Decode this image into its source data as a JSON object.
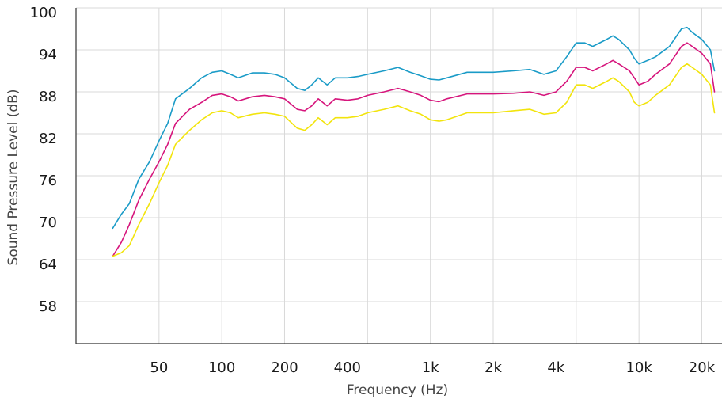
{
  "chart_data": {
    "type": "line",
    "xlabel": "Frequency (Hz)",
    "ylabel": "Sound Pressure Level (dB)",
    "x_scale": "log",
    "xlim": [
      20,
      25000
    ],
    "ylim": [
      52,
      100
    ],
    "grid": true,
    "x_gridlines": [
      50,
      100,
      200,
      500,
      1000,
      2000,
      5000,
      10000,
      20000
    ],
    "x_ticks": [
      {
        "value": 50,
        "label": "50"
      },
      {
        "value": 100,
        "label": "100"
      },
      {
        "value": 200,
        "label": "200"
      },
      {
        "value": 400,
        "label": "400"
      },
      {
        "value": 1000,
        "label": "1k"
      },
      {
        "value": 2000,
        "label": "2k"
      },
      {
        "value": 4000,
        "label": "4k"
      },
      {
        "value": 10000,
        "label": "10k"
      },
      {
        "value": 20000,
        "label": "20k"
      }
    ],
    "y_ticks": [
      {
        "value": 100,
        "label": "100"
      },
      {
        "value": 94,
        "label": "94"
      },
      {
        "value": 88,
        "label": "88"
      },
      {
        "value": 82,
        "label": "82"
      },
      {
        "value": 76,
        "label": "76"
      },
      {
        "value": 70,
        "label": "70"
      },
      {
        "value": 64,
        "label": "64"
      },
      {
        "value": 58,
        "label": "58"
      }
    ],
    "x": [
      30,
      33,
      36,
      40,
      45,
      50,
      55,
      60,
      70,
      80,
      90,
      100,
      110,
      120,
      140,
      160,
      180,
      200,
      230,
      250,
      270,
      290,
      320,
      350,
      400,
      450,
      500,
      600,
      700,
      800,
      900,
      1000,
      1100,
      1200,
      1500,
      2000,
      2500,
      3000,
      3500,
      4000,
      4500,
      5000,
      5500,
      6000,
      7000,
      7500,
      8000,
      9000,
      9500,
      10000,
      11000,
      12000,
      14000,
      16000,
      17000,
      18000,
      20000,
      22000,
      23000
    ],
    "series": [
      {
        "color": "#1a9bc7",
        "values": [
          68.5,
          70.5,
          72.0,
          75.5,
          78.0,
          81.0,
          83.5,
          87.0,
          88.5,
          90.0,
          90.8,
          91.0,
          90.5,
          90.0,
          90.7,
          90.7,
          90.5,
          90.0,
          88.5,
          88.2,
          89.0,
          90.0,
          89.0,
          90.0,
          90.0,
          90.2,
          90.5,
          91.0,
          91.5,
          90.8,
          90.3,
          89.8,
          89.7,
          90.0,
          90.8,
          90.8,
          91.0,
          91.2,
          90.5,
          91.0,
          93.0,
          95.0,
          95.0,
          94.5,
          95.5,
          96.0,
          95.5,
          94.0,
          92.8,
          92.0,
          92.5,
          93.0,
          94.5,
          97.0,
          97.2,
          96.5,
          95.5,
          94.0,
          91.0
        ]
      },
      {
        "color": "#d6157c",
        "values": [
          64.5,
          66.5,
          69.0,
          72.5,
          75.5,
          78.0,
          80.5,
          83.5,
          85.5,
          86.5,
          87.5,
          87.7,
          87.3,
          86.7,
          87.3,
          87.5,
          87.3,
          87.0,
          85.5,
          85.3,
          86.0,
          87.0,
          86.0,
          87.0,
          86.8,
          87.0,
          87.5,
          88.0,
          88.5,
          88.0,
          87.5,
          86.8,
          86.6,
          87.0,
          87.7,
          87.7,
          87.8,
          88.0,
          87.5,
          88.0,
          89.5,
          91.5,
          91.5,
          91.0,
          92.0,
          92.5,
          92.0,
          91.0,
          90.0,
          89.0,
          89.5,
          90.5,
          92.0,
          94.5,
          95.0,
          94.5,
          93.5,
          92.0,
          88.0
        ]
      },
      {
        "color": "#f2e40c",
        "values": [
          64.5,
          65.0,
          66.0,
          69.0,
          72.0,
          75.0,
          77.5,
          80.5,
          82.5,
          84.0,
          85.0,
          85.3,
          85.0,
          84.3,
          84.8,
          85.0,
          84.8,
          84.5,
          82.8,
          82.5,
          83.3,
          84.3,
          83.3,
          84.3,
          84.3,
          84.5,
          85.0,
          85.5,
          86.0,
          85.3,
          84.8,
          84.0,
          83.8,
          84.0,
          85.0,
          85.0,
          85.3,
          85.5,
          84.8,
          85.0,
          86.5,
          89.0,
          89.0,
          88.5,
          89.5,
          90.0,
          89.5,
          88.0,
          86.5,
          86.0,
          86.5,
          87.5,
          89.0,
          91.5,
          92.0,
          91.5,
          90.5,
          89.0,
          85.0
        ]
      }
    ]
  }
}
